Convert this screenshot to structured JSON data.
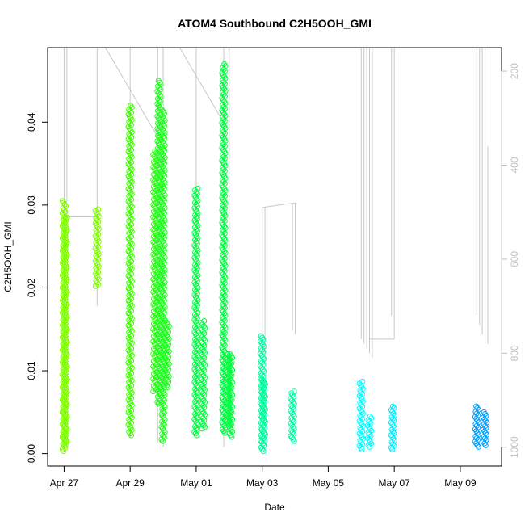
{
  "chart_data": {
    "type": "scatter",
    "title": "ATOM4 Southbound C2H5OOH_GMI",
    "xlabel": "Date",
    "ylabel": "C2H5OOH_GMI",
    "xlim": [
      "2018-04-26T12:00",
      "2018-05-10T06:00"
    ],
    "ylim": [
      -0.0015,
      0.049
    ],
    "x_ticks": [
      {
        "date": "2018-04-27T00:00",
        "label": "Apr 27"
      },
      {
        "date": "2018-04-29T00:00",
        "label": "Apr 29"
      },
      {
        "date": "2018-05-01T00:00",
        "label": "May 01"
      },
      {
        "date": "2018-05-03T00:00",
        "label": "May 03"
      },
      {
        "date": "2018-05-05T00:00",
        "label": "May 05"
      },
      {
        "date": "2018-05-07T00:00",
        "label": "May 07"
      },
      {
        "date": "2018-05-09T00:00",
        "label": "May 09"
      }
    ],
    "y_ticks": [
      {
        "value": 0.0,
        "label": "0.00"
      },
      {
        "value": 0.01,
        "label": "0.01"
      },
      {
        "value": 0.02,
        "label": "0.02"
      },
      {
        "value": 0.03,
        "label": "0.03"
      },
      {
        "value": 0.04,
        "label": "0.04"
      }
    ],
    "secondary_axis": {
      "side": "right",
      "reversed": true,
      "range": [
        150,
        1040
      ],
      "color": "#c0c0c0",
      "ticks": [
        {
          "value": 200,
          "label": "200"
        },
        {
          "value": 400,
          "label": "400"
        },
        {
          "value": 600,
          "label": "600"
        },
        {
          "value": 800,
          "label": "800"
        },
        {
          "value": 1000,
          "label": "1000"
        }
      ]
    },
    "clusters": [
      {
        "date": "2018-04-27T00:00",
        "ymin": 0.0003,
        "ymax": 0.0305,
        "color": "#80ff00"
      },
      {
        "date": "2018-04-27T01:00",
        "ymin": 0.001,
        "ymax": 0.0285,
        "color": "#80ff00"
      },
      {
        "date": "2018-04-28T00:00",
        "ymin": 0.0202,
        "ymax": 0.0295,
        "color": "#80ff00"
      },
      {
        "date": "2018-04-29T00:00",
        "ymin": 0.0022,
        "ymax": 0.042,
        "color": "#40ff00"
      },
      {
        "date": "2018-04-29T18:00",
        "ymin": 0.0075,
        "ymax": 0.0365,
        "color": "#30ff10"
      },
      {
        "date": "2018-04-29T21:00",
        "ymin": 0.006,
        "ymax": 0.045,
        "color": "#20ff20"
      },
      {
        "date": "2018-04-30T00:00",
        "ymin": 0.0015,
        "ymax": 0.0415,
        "color": "#20ff20"
      },
      {
        "date": "2018-04-30T03:00",
        "ymin": 0.008,
        "ymax": 0.016,
        "color": "#20ff20"
      },
      {
        "date": "2018-05-01T00:00",
        "ymin": 0.0022,
        "ymax": 0.032,
        "color": "#00ff40"
      },
      {
        "date": "2018-05-01T05:00",
        "ymin": 0.003,
        "ymax": 0.016,
        "color": "#00ff40"
      },
      {
        "date": "2018-05-01T20:00",
        "ymin": 0.0025,
        "ymax": 0.047,
        "color": "#00ff40"
      },
      {
        "date": "2018-05-01T23:00",
        "ymin": 0.0035,
        "ymax": 0.012,
        "color": "#00ff40"
      },
      {
        "date": "2018-05-02T01:00",
        "ymin": 0.002,
        "ymax": 0.012,
        "color": "#00ff40"
      },
      {
        "date": "2018-05-03T00:00",
        "ymin": 0.0003,
        "ymax": 0.0142,
        "color": "#00ffa0"
      },
      {
        "date": "2018-05-03T01:00",
        "ymin": 0.001,
        "ymax": 0.009,
        "color": "#00ffa0"
      },
      {
        "date": "2018-05-03T22:00",
        "ymin": 0.0015,
        "ymax": 0.0075,
        "color": "#00ffa0"
      },
      {
        "date": "2018-05-06T00:00",
        "ymin": 0.0005,
        "ymax": 0.0087,
        "color": "#00ffff"
      },
      {
        "date": "2018-05-06T06:00",
        "ymin": 0.0008,
        "ymax": 0.0045,
        "color": "#00ffff"
      },
      {
        "date": "2018-05-06T23:00",
        "ymin": 0.0005,
        "ymax": 0.0057,
        "color": "#00f0ff"
      },
      {
        "date": "2018-05-09T12:00",
        "ymin": 0.0008,
        "ymax": 0.0057,
        "color": "#00a0ff"
      },
      {
        "date": "2018-05-09T18:00",
        "ymin": 0.001,
        "ymax": 0.005,
        "color": "#00a0ff"
      }
    ],
    "pressure_profile_color": "#c8c8c8",
    "pressure_profiles": [
      {
        "date": "2018-04-27T00:00",
        "pmin": 150,
        "pmax": 1010
      },
      {
        "date": "2018-04-27T02:00",
        "pmin": 150,
        "pmax": 520
      },
      {
        "date": "2018-04-28T00:00",
        "pmin": 150,
        "pmax": 700
      },
      {
        "date": "2018-04-29T00:00",
        "pmin": 150,
        "pmax": 980
      },
      {
        "date": "2018-04-29T20:00",
        "pmin": 150,
        "pmax": 990
      },
      {
        "date": "2018-04-30T00:00",
        "pmin": 150,
        "pmax": 1000
      },
      {
        "date": "2018-05-01T00:00",
        "pmin": 150,
        "pmax": 960
      },
      {
        "date": "2018-05-01T20:00",
        "pmin": 150,
        "pmax": 1000
      },
      {
        "date": "2018-05-02T00:00",
        "pmin": 150,
        "pmax": 950
      },
      {
        "date": "2018-05-03T00:00",
        "pmin": 490,
        "pmax": 990
      },
      {
        "date": "2018-05-03T02:00",
        "pmin": 490,
        "pmax": 820
      },
      {
        "date": "2018-05-03T22:00",
        "pmin": 480,
        "pmax": 750
      },
      {
        "date": "2018-05-04T00:00",
        "pmin": 480,
        "pmax": 760
      },
      {
        "date": "2018-05-06T00:00",
        "pmin": 150,
        "pmax": 770
      },
      {
        "date": "2018-05-06T02:00",
        "pmin": 150,
        "pmax": 780
      },
      {
        "date": "2018-05-06T04:00",
        "pmin": 150,
        "pmax": 790
      },
      {
        "date": "2018-05-06T06:00",
        "pmin": 150,
        "pmax": 800
      },
      {
        "date": "2018-05-06T08:00",
        "pmin": 150,
        "pmax": 810
      },
      {
        "date": "2018-05-06T22:00",
        "pmin": 150,
        "pmax": 720
      },
      {
        "date": "2018-05-07T00:00",
        "pmin": 150,
        "pmax": 770
      },
      {
        "date": "2018-05-09T12:00",
        "pmin": 150,
        "pmax": 720
      },
      {
        "date": "2018-05-09T14:00",
        "pmin": 150,
        "pmax": 740
      },
      {
        "date": "2018-05-09T16:00",
        "pmin": 150,
        "pmax": 760
      },
      {
        "date": "2018-05-09T18:00",
        "pmin": 150,
        "pmax": 780
      },
      {
        "date": "2018-05-09T20:00",
        "pmin": 360,
        "pmax": 780
      }
    ],
    "pressure_connectors": [
      {
        "from": {
          "date": "2018-04-27T00:00",
          "p": 510
        },
        "to": {
          "date": "2018-04-28T00:00",
          "p": 510
        }
      },
      {
        "from": {
          "date": "2018-04-28T06:00",
          "p": 150
        },
        "to": {
          "date": "2018-04-29T20:00",
          "p": 340
        }
      },
      {
        "from": {
          "date": "2018-04-30T12:00",
          "p": 150
        },
        "to": {
          "date": "2018-05-01T18:00",
          "p": 300
        }
      },
      {
        "from": {
          "date": "2018-05-03T00:00",
          "p": 490
        },
        "to": {
          "date": "2018-05-04T00:00",
          "p": 480
        }
      },
      {
        "from": {
          "date": "2018-05-06T06:00",
          "p": 770
        },
        "to": {
          "date": "2018-05-07T00:00",
          "p": 770
        }
      }
    ]
  }
}
